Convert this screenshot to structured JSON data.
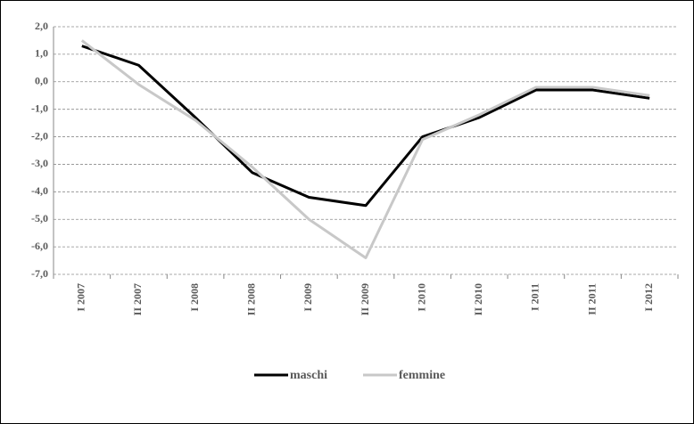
{
  "chart_data": {
    "type": "line",
    "categories": [
      "I 2007",
      "II 2007",
      "I 2008",
      "II 2008",
      "I 2009",
      "II 2009",
      "I 2010",
      "II 2010",
      "I 2011",
      "II 2011",
      "I 2012"
    ],
    "series": [
      {
        "name": "maschi",
        "color": "#000000",
        "values": [
          1.3,
          0.6,
          -1.3,
          -3.3,
          -4.2,
          -4.5,
          -2.0,
          -1.3,
          -0.3,
          -0.3,
          -0.6
        ]
      },
      {
        "name": "femmine",
        "color": "#c8c8c8",
        "values": [
          1.5,
          -0.1,
          -1.4,
          -3.1,
          -5.0,
          -6.4,
          -2.1,
          -1.2,
          -0.2,
          -0.2,
          -0.5
        ]
      }
    ],
    "ylim": [
      -7,
      2
    ],
    "yticks": [
      {
        "value": 2,
        "label": "2,0"
      },
      {
        "value": 1,
        "label": "1,0"
      },
      {
        "value": 0,
        "label": "0,0"
      },
      {
        "value": -1,
        "label": "-1,0"
      },
      {
        "value": -2,
        "label": "-2,0"
      },
      {
        "value": -3,
        "label": "-3,0"
      },
      {
        "value": -4,
        "label": "-4,0"
      },
      {
        "value": -5,
        "label": "-5,0"
      },
      {
        "value": -6,
        "label": "-6,0"
      },
      {
        "value": -7,
        "label": "-7,0"
      }
    ],
    "grid": true,
    "legend": "bottom"
  }
}
